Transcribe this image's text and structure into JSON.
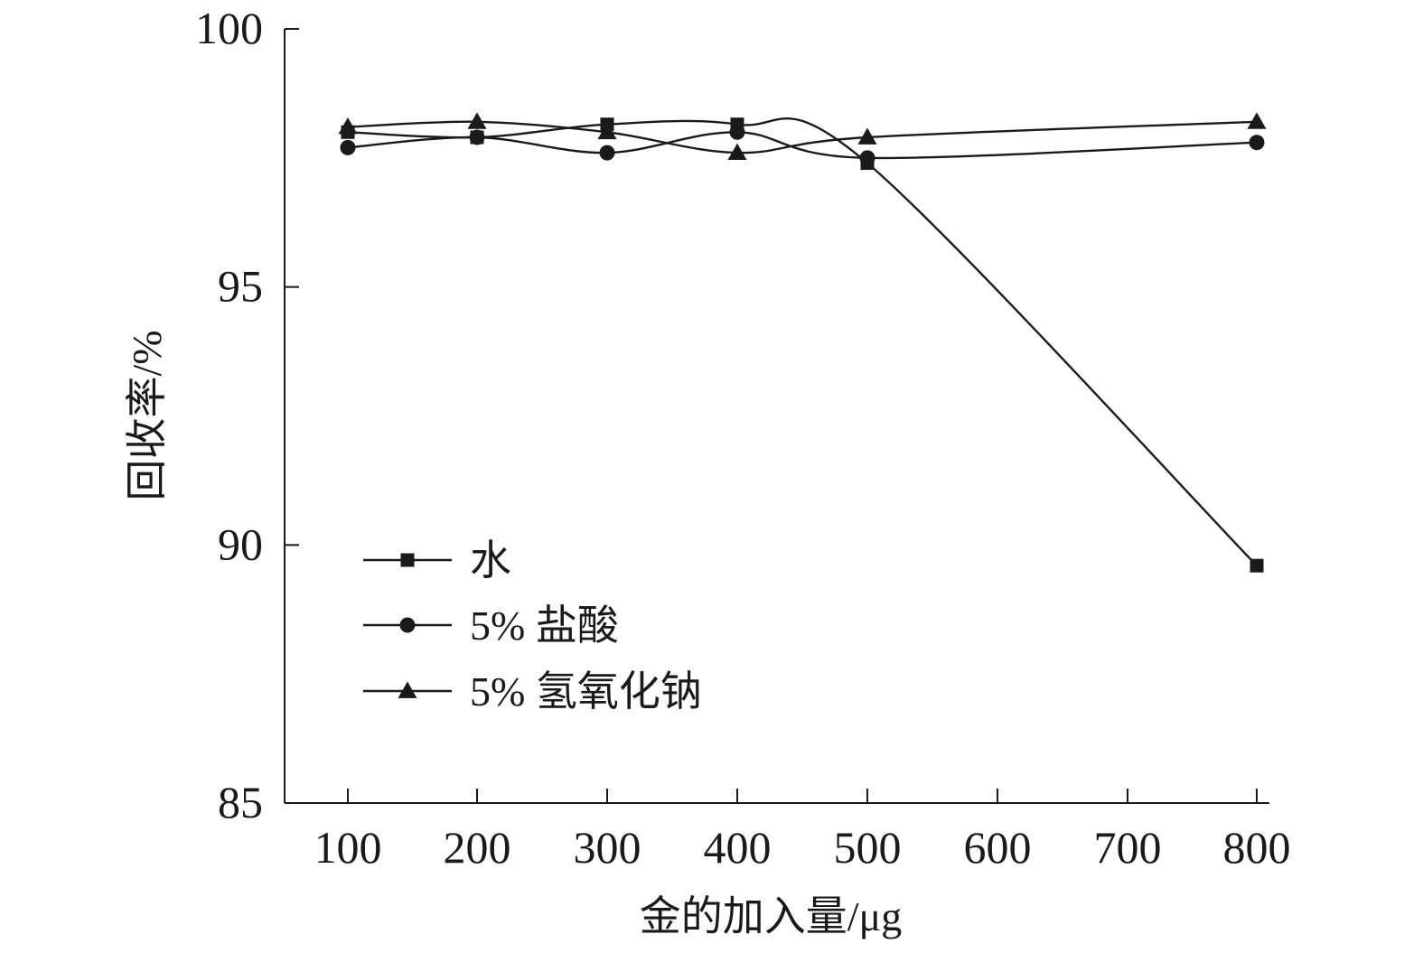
{
  "chart_data": {
    "type": "line",
    "xlabel": "金的加入量/μg",
    "ylabel": "回收率/%",
    "categories": [
      "100",
      "200",
      "300",
      "400",
      "500",
      "600",
      "700",
      "800"
    ],
    "ylim": [
      85,
      100
    ],
    "yticks": [
      "85",
      "90",
      "95",
      "100"
    ],
    "grid": false,
    "legend_position": "bottom-left",
    "series": [
      {
        "name": "水",
        "marker": "square",
        "color": "#1a1a1a",
        "points": [
          {
            "x": "100",
            "y": 98.0
          },
          {
            "x": "200",
            "y": 97.9
          },
          {
            "x": "300",
            "y": 98.15
          },
          {
            "x": "400",
            "y": 98.15
          },
          {
            "x": "500",
            "y": 97.4
          },
          {
            "x": "800",
            "y": 89.6
          }
        ]
      },
      {
        "name": "5% 盐酸",
        "marker": "circle",
        "color": "#1a1a1a",
        "points": [
          {
            "x": "100",
            "y": 97.7
          },
          {
            "x": "200",
            "y": 97.9
          },
          {
            "x": "300",
            "y": 97.6
          },
          {
            "x": "400",
            "y": 98.0
          },
          {
            "x": "500",
            "y": 97.5
          },
          {
            "x": "800",
            "y": 97.8
          }
        ]
      },
      {
        "name": "5% 氢氧化钠",
        "marker": "triangle",
        "color": "#1a1a1a",
        "points": [
          {
            "x": "100",
            "y": 98.1
          },
          {
            "x": "200",
            "y": 98.2
          },
          {
            "x": "300",
            "y": 98.0
          },
          {
            "x": "400",
            "y": 97.6
          },
          {
            "x": "500",
            "y": 97.9
          },
          {
            "x": "800",
            "y": 98.2
          }
        ]
      }
    ]
  }
}
